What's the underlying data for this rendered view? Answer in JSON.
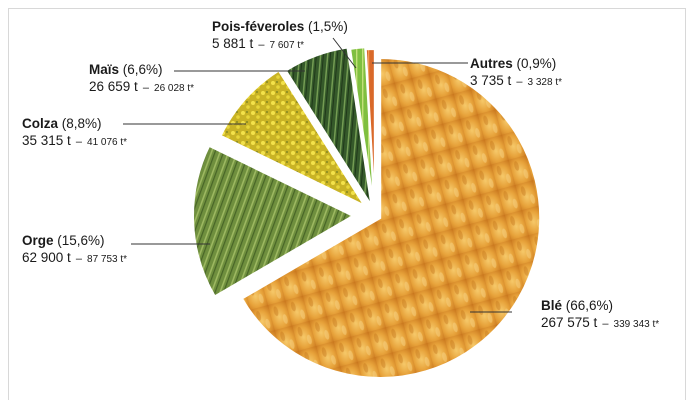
{
  "chart_data": {
    "type": "pie",
    "title": "",
    "slices": [
      {
        "name": "Blé",
        "percent_label": "(66,6%)",
        "tons": "267 575 t",
        "previous": "339 343 t*",
        "value": 66.6,
        "texture": "wheat",
        "color": "#e39a2a"
      },
      {
        "name": "Orge",
        "percent_label": "(15,6%)",
        "tons": "62 900 t",
        "previous": "87 753 t*",
        "value": 15.6,
        "texture": "barley",
        "color": "#6f8f3e"
      },
      {
        "name": "Colza",
        "percent_label": "(8,8%)",
        "tons": "35 315 t",
        "previous": "41 076 t*",
        "value": 8.8,
        "texture": "rapeseed",
        "color": "#d7c12a"
      },
      {
        "name": "Maïs",
        "percent_label": "(6,6%)",
        "tons": "26 659 t",
        "previous": "26 028 t*",
        "value": 6.6,
        "texture": "corn",
        "color": "#3f6b2a"
      },
      {
        "name": "Pois-féveroles",
        "percent_label": "(1,5%)",
        "tons": "5 881 t",
        "previous": "7 607 t*",
        "value": 1.5,
        "texture": "peas",
        "color": "#7fbf3f"
      },
      {
        "name": "Autres",
        "percent_label": "(0,9%)",
        "tons": "3 735 t",
        "previous": "3 328 t*",
        "value": 0.9,
        "texture": "other",
        "color": "#d9692a"
      }
    ],
    "separator": "–",
    "legend": "labels-with-leader-lines"
  }
}
